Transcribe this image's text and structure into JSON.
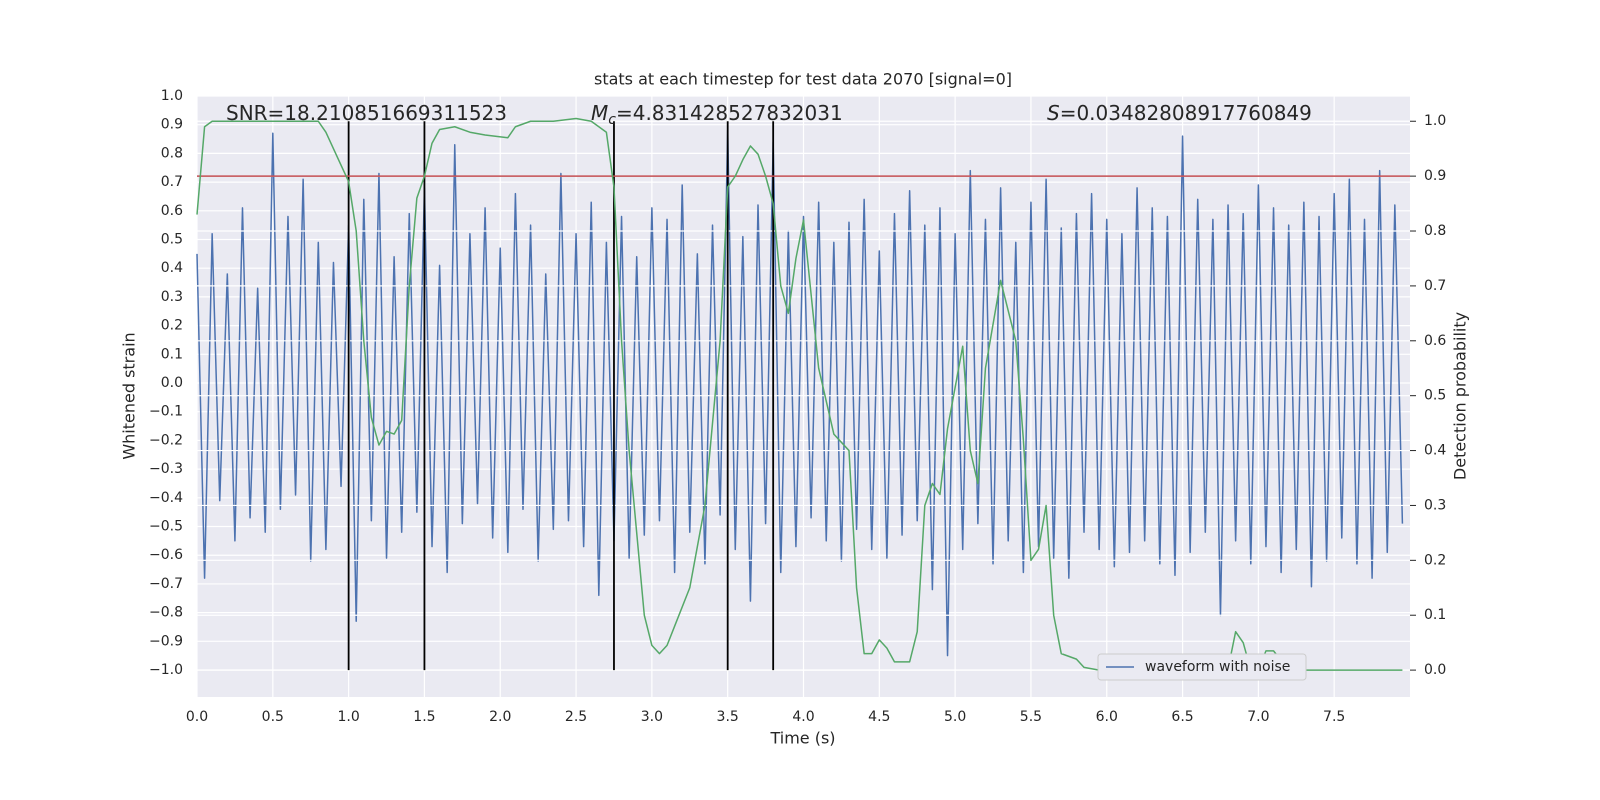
{
  "chart_data": {
    "type": "line",
    "title": "stats at each timestep for test data 2070 [signal=0]",
    "xlabel": "Time (s)",
    "ylabel": "Whitened strain",
    "y2label": "Detection probability",
    "annotations": [
      {
        "text": "SNR=18.210851669311523"
      },
      {
        "symbol": "M",
        "subscript": "c",
        "text": "=4.831428527832031"
      },
      {
        "symbol": "S",
        "text": "=0.03482808917760849"
      }
    ],
    "xlim": [
      0,
      8
    ],
    "xticks": [
      {
        "value": 0,
        "label": "0.0"
      },
      0.5,
      {
        "value": 1,
        "label": "1.0"
      },
      1.5,
      {
        "value": 2,
        "label": "2.0"
      },
      2.5,
      {
        "value": 3,
        "label": "3.0"
      },
      3.5,
      {
        "value": 4,
        "label": "4.0"
      },
      4.5,
      {
        "value": 5,
        "label": "5.0"
      },
      5.5,
      {
        "value": 6,
        "label": "6.0"
      },
      6.5,
      {
        "value": 7,
        "label": "7.0"
      },
      7.5
    ],
    "ylim": [
      -1.094,
      1.0
    ],
    "yticks": [
      {
        "value": -1,
        "label": "−1.0"
      },
      {
        "value": -0.9,
        "label": "−0.9"
      },
      {
        "value": -0.8,
        "label": "−0.8"
      },
      {
        "value": -0.7,
        "label": "−0.7"
      },
      {
        "value": -0.6,
        "label": "−0.6"
      },
      {
        "value": -0.5,
        "label": "−0.5"
      },
      {
        "value": -0.4,
        "label": "−0.4"
      },
      {
        "value": -0.3,
        "label": "−0.3"
      },
      {
        "value": -0.2,
        "label": "−0.2"
      },
      {
        "value": -0.1,
        "label": "−0.1"
      },
      {
        "value": 0,
        "label": "0.0"
      },
      0.1,
      0.2,
      0.3,
      0.4,
      0.5,
      0.6,
      0.7,
      0.8,
      0.9,
      {
        "value": 1,
        "label": "1.0"
      }
    ],
    "y2lim": [
      -0.049,
      1.046
    ],
    "y2ticks": [
      {
        "value": 0,
        "label": "0.0"
      },
      0.1,
      0.2,
      0.3,
      0.4,
      0.5,
      0.6,
      0.7,
      0.8,
      0.9,
      {
        "value": 1,
        "label": "1.0"
      }
    ],
    "grid": true,
    "legend": "lower right",
    "threshold": {
      "value": 0.9,
      "axis": "y2",
      "color": "#c44e52"
    },
    "vlines": {
      "x": [
        1.0,
        1.5,
        2.75,
        3.5,
        3.8
      ],
      "ymin": 0,
      "ymax": 1,
      "axis": "y2",
      "color": "#000000"
    },
    "series": [
      {
        "name": "waveform with noise",
        "color": "#4c72b0",
        "x": [
          0,
          0.05,
          0.1,
          0.15,
          0.2,
          0.25,
          0.3,
          0.35,
          0.4,
          0.45,
          0.5,
          0.55,
          0.6,
          0.65,
          0.7,
          0.75,
          0.8,
          0.85,
          0.9,
          0.95,
          1,
          1.05,
          1.1,
          1.15,
          1.2,
          1.25,
          1.3,
          1.35,
          1.4,
          1.45,
          1.5,
          1.55,
          1.6,
          1.65,
          1.7,
          1.75,
          1.8,
          1.85,
          1.9,
          1.95,
          2,
          2.05,
          2.1,
          2.15,
          2.2,
          2.25,
          2.3,
          2.35,
          2.4,
          2.45,
          2.5,
          2.55,
          2.6,
          2.65,
          2.7,
          2.75,
          2.8,
          2.85,
          2.9,
          2.95,
          3,
          3.05,
          3.1,
          3.15,
          3.2,
          3.25,
          3.3,
          3.35,
          3.4,
          3.45,
          3.5,
          3.55,
          3.6,
          3.65,
          3.7,
          3.75,
          3.8,
          3.85,
          3.9,
          3.95,
          4,
          4.05,
          4.1,
          4.15,
          4.2,
          4.25,
          4.3,
          4.35,
          4.4,
          4.45,
          4.5,
          4.55,
          4.6,
          4.65,
          4.7,
          4.75,
          4.8,
          4.85,
          4.9,
          4.95,
          5,
          5.05,
          5.1,
          5.15,
          5.2,
          5.25,
          5.3,
          5.35,
          5.4,
          5.45,
          5.5,
          5.55,
          5.6,
          5.65,
          5.7,
          5.75,
          5.8,
          5.85,
          5.9,
          5.95,
          6,
          6.05,
          6.1,
          6.15,
          6.2,
          6.25,
          6.3,
          6.35,
          6.4,
          6.45,
          6.5,
          6.55,
          6.6,
          6.65,
          6.7,
          6.75,
          6.8,
          6.85,
          6.9,
          6.95,
          7,
          7.05,
          7.1,
          7.15,
          7.2,
          7.25,
          7.3,
          7.35,
          7.4,
          7.45,
          7.5,
          7.55,
          7.6,
          7.65,
          7.7,
          7.75,
          7.8,
          7.85,
          7.9,
          7.95
        ],
        "values": [
          0.45,
          -0.68,
          0.52,
          -0.41,
          0.38,
          -0.55,
          0.61,
          -0.47,
          0.33,
          -0.52,
          0.87,
          -0.44,
          0.58,
          -0.39,
          0.71,
          -0.62,
          0.49,
          -0.58,
          0.42,
          -0.36,
          0.55,
          -0.83,
          0.64,
          -0.48,
          0.73,
          -0.61,
          0.44,
          -0.52,
          0.59,
          -0.45,
          0.68,
          -0.57,
          0.41,
          -0.66,
          0.83,
          -0.49,
          0.52,
          -0.42,
          0.61,
          -0.54,
          0.47,
          -0.59,
          0.66,
          -0.44,
          0.55,
          -0.62,
          0.38,
          -0.51,
          0.73,
          -0.48,
          0.52,
          -0.57,
          0.63,
          -0.74,
          0.49,
          -0.55,
          0.58,
          -0.61,
          0.44,
          -0.53,
          0.61,
          -0.48,
          0.57,
          -0.66,
          0.69,
          -0.52,
          0.45,
          -0.63,
          0.55,
          -0.46,
          0.88,
          -0.58,
          0.51,
          -0.76,
          0.62,
          -0.49,
          0.84,
          -0.66,
          0.53,
          -0.57,
          0.58,
          -0.47,
          0.63,
          -0.55,
          0.49,
          -0.62,
          0.56,
          -0.51,
          0.64,
          -0.58,
          0.46,
          -0.61,
          0.59,
          -0.53,
          0.67,
          -0.48,
          0.55,
          -0.72,
          0.61,
          -0.95,
          0.52,
          -0.58,
          0.74,
          -0.49,
          0.57,
          -0.63,
          0.68,
          -0.55,
          0.49,
          -0.66,
          0.63,
          -0.57,
          0.71,
          -0.61,
          0.54,
          -0.68,
          0.59,
          -0.52,
          0.66,
          -0.58,
          0.57,
          -0.64,
          0.52,
          -0.59,
          0.68,
          -0.55,
          0.61,
          -0.63,
          0.58,
          -0.67,
          0.86,
          -0.59,
          0.64,
          -0.52,
          0.57,
          -0.81,
          0.62,
          -0.55,
          0.59,
          -0.63,
          0.69,
          -0.57,
          0.61,
          -0.66,
          0.55,
          -0.58,
          0.63,
          -0.71,
          0.58,
          -0.62,
          0.66,
          -0.54,
          0.71,
          -0.63,
          0.57,
          -0.68,
          0.74,
          -0.59,
          0.62,
          -0.49
        ]
      },
      {
        "axis": "y2",
        "color": "#55a868",
        "x": [
          0,
          0.05,
          0.1,
          0.8,
          0.85,
          0.9,
          0.95,
          1,
          1.05,
          1.1,
          1.15,
          1.2,
          1.25,
          1.3,
          1.35,
          1.4,
          1.45,
          1.5,
          1.55,
          1.6,
          1.7,
          1.8,
          1.9,
          2.05,
          2.1,
          2.2,
          2.35,
          2.5,
          2.6,
          2.7,
          2.75,
          2.8,
          2.85,
          2.9,
          2.95,
          3,
          3.05,
          3.1,
          3.15,
          3.25,
          3.35,
          3.45,
          3.5,
          3.55,
          3.6,
          3.65,
          3.7,
          3.75,
          3.8,
          3.85,
          3.9,
          3.95,
          4,
          4.1,
          4.2,
          4.3,
          4.35,
          4.4,
          4.45,
          4.5,
          4.55,
          4.6,
          4.7,
          4.75,
          4.8,
          4.85,
          4.9,
          4.95,
          5.05,
          5.1,
          5.15,
          5.2,
          5.3,
          5.4,
          5.45,
          5.5,
          5.55,
          5.6,
          5.65,
          5.7,
          5.8,
          5.85,
          5.95,
          6.4,
          6.5,
          6.75,
          6.8,
          6.85,
          6.9,
          6.95,
          7,
          7.05,
          7.1,
          7.2,
          7.4,
          7.95
        ],
        "values": [
          0.83,
          0.99,
          1.0,
          1.0,
          0.98,
          0.95,
          0.92,
          0.89,
          0.8,
          0.6,
          0.46,
          0.41,
          0.435,
          0.43,
          0.455,
          0.7,
          0.86,
          0.9,
          0.96,
          0.985,
          0.99,
          0.98,
          0.975,
          0.97,
          0.99,
          1.0,
          1.0,
          1.005,
          1.0,
          0.98,
          0.88,
          0.6,
          0.4,
          0.25,
          0.1,
          0.045,
          0.03,
          0.045,
          0.08,
          0.15,
          0.3,
          0.6,
          0.88,
          0.9,
          0.93,
          0.955,
          0.94,
          0.9,
          0.85,
          0.7,
          0.65,
          0.75,
          0.82,
          0.55,
          0.43,
          0.4,
          0.15,
          0.03,
          0.03,
          0.055,
          0.04,
          0.015,
          0.015,
          0.07,
          0.3,
          0.34,
          0.32,
          0.44,
          0.59,
          0.4,
          0.34,
          0.55,
          0.71,
          0.6,
          0.42,
          0.2,
          0.22,
          0.3,
          0.1,
          0.03,
          0.02,
          0.005,
          0.0,
          0.0,
          0.002,
          0.0,
          0.002,
          0.07,
          0.05,
          0.0,
          0.0,
          0.035,
          0.035,
          0.0,
          0.0,
          0.0
        ]
      }
    ]
  }
}
